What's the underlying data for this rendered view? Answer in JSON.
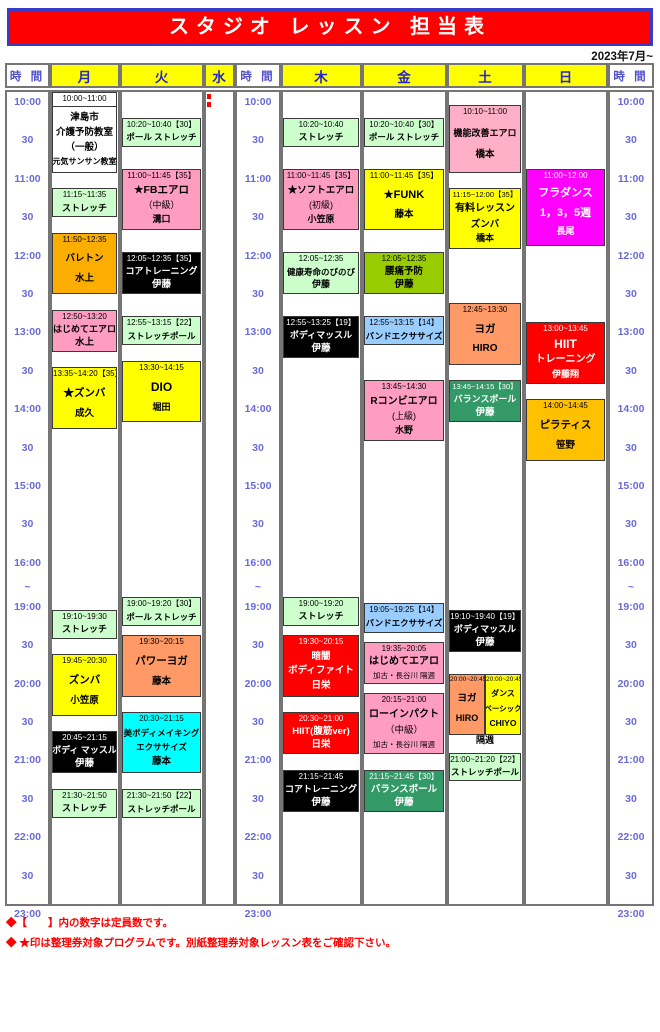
{
  "title": "スタジオ レッスン 担当表",
  "effective": "2023年7月~",
  "columns": [
    {
      "id": "timeL",
      "header": "時 間",
      "kind": "time"
    },
    {
      "id": "mon",
      "header": "月",
      "kind": "day"
    },
    {
      "id": "tue",
      "header": "火",
      "kind": "day"
    },
    {
      "id": "wed",
      "header": "水",
      "kind": "day"
    },
    {
      "id": "timeM",
      "header": "時 間",
      "kind": "time"
    },
    {
      "id": "thu",
      "header": "木",
      "kind": "day"
    },
    {
      "id": "fri",
      "header": "金",
      "kind": "day"
    },
    {
      "id": "sat",
      "header": "土",
      "kind": "day"
    },
    {
      "id": "sun",
      "header": "日",
      "kind": "day"
    },
    {
      "id": "timeR",
      "header": "時 間",
      "kind": "time"
    }
  ],
  "time_labels": [
    {
      "text": "10:00",
      "t": "10:00"
    },
    {
      "text": "30",
      "t": "10:30"
    },
    {
      "text": "11:00",
      "t": "11:00"
    },
    {
      "text": "30",
      "t": "11:30"
    },
    {
      "text": "12:00",
      "t": "12:00"
    },
    {
      "text": "30",
      "t": "12:30"
    },
    {
      "text": "13:00",
      "t": "13:00"
    },
    {
      "text": "30",
      "t": "13:30"
    },
    {
      "text": "14:00",
      "t": "14:00"
    },
    {
      "text": "30",
      "t": "14:30"
    },
    {
      "text": "15:00",
      "t": "15:00"
    },
    {
      "text": "30",
      "t": "15:30"
    },
    {
      "text": "16:00",
      "t": "16:00"
    },
    {
      "text": "~",
      "t": "17:40"
    },
    {
      "text": "19:00",
      "t": "19:00"
    },
    {
      "text": "30",
      "t": "19:30"
    },
    {
      "text": "20:00",
      "t": "20:00"
    },
    {
      "text": "30",
      "t": "20:30"
    },
    {
      "text": "21:00",
      "t": "21:00"
    },
    {
      "text": "30",
      "t": "21:30"
    },
    {
      "text": "22:00",
      "t": "22:00"
    },
    {
      "text": "30",
      "t": "22:30"
    },
    {
      "text": "23:00",
      "t": "23:00"
    }
  ],
  "cells": [
    {
      "col": "mon",
      "time": "10:00~11:00",
      "s": "10:00",
      "e": "11:03",
      "bg": "#FFFFFF",
      "cls": "plain",
      "lines": [
        "津島市",
        "介護予防教室",
        "（一般）",
        {
          "t": "元気サンサン教室",
          "fs": 8
        }
      ]
    },
    {
      "col": "mon",
      "time": "11:15~11:35",
      "s": "11:15",
      "e": "11:38",
      "bg": "#CCFFCC",
      "lines": [
        {
          "t": "ストレッチ",
          "fs": 9
        }
      ]
    },
    {
      "col": "mon",
      "time": "11:50~12:35",
      "s": "11:50",
      "e": "12:38",
      "bg": "#FBAE00",
      "lines": [
        "バレトン",
        "水上"
      ]
    },
    {
      "col": "mon",
      "time": "12:50~13:20",
      "s": "12:50",
      "e": "13:23",
      "bg": "#FF9DC0",
      "lines": [
        {
          "t": "はじめてエアロ",
          "fs": 9
        },
        "水上"
      ]
    },
    {
      "col": "mon",
      "time": "13:35~14:20【35】",
      "s": "13:35",
      "e": "14:23",
      "bg": "#FFFF00",
      "lines": [
        {
          "t": "★ズンバ",
          "fs": 10.5
        },
        "成久"
      ]
    },
    {
      "col": "mon",
      "time": "19:10~19:30",
      "s": "19:10",
      "e": "19:33",
      "bg": "#CCFFCC",
      "lines": [
        {
          "t": "ストレッチ",
          "fs": 9
        }
      ]
    },
    {
      "col": "mon",
      "time": "19:45~20:30",
      "s": "19:45",
      "e": "20:33",
      "bg": "#FFFF00",
      "lines": [
        {
          "t": "ズンバ",
          "fs": 10.5
        },
        "小笠原"
      ]
    },
    {
      "col": "mon",
      "time": "20:45~21:15",
      "s": "20:45",
      "e": "21:18",
      "bg": "#000000",
      "fg": "#FFFFFF",
      "lines": [
        {
          "t": "ボディ マッスル",
          "fs": 9
        },
        "伊藤"
      ]
    },
    {
      "col": "mon",
      "time": "21:30~21:50",
      "s": "21:30",
      "e": "21:53",
      "bg": "#CCFFCC",
      "lines": [
        {
          "t": "ストレッチ",
          "fs": 9
        }
      ]
    },
    {
      "col": "tue",
      "time": "10:20~10:40【30】",
      "s": "10:20",
      "e": "10:43",
      "bg": "#CCFFCC",
      "lines": [
        {
          "t": "ポール ストレッチ",
          "fs": 8.5
        }
      ]
    },
    {
      "col": "tue",
      "time": "11:00~11:45【35】",
      "s": "11:00",
      "e": "11:48",
      "bg": "#FF9DC0",
      "lines": [
        {
          "t": "★FBエアロ",
          "fs": 10.5
        },
        {
          "t": "（中級）",
          "fs": 9,
          "b": 0
        },
        {
          "t": "溝口",
          "fs": 9
        }
      ]
    },
    {
      "col": "tue",
      "time": "12:05~12:35【35】",
      "s": "12:05",
      "e": "12:38",
      "bg": "#000000",
      "fg": "#FFFFFF",
      "lines": [
        {
          "t": "コアトレーニング",
          "fs": 9
        },
        "伊藤"
      ]
    },
    {
      "col": "tue",
      "time": "12:55~13:15【22】",
      "s": "12:55",
      "e": "13:18",
      "bg": "#CCFFCC",
      "lines": [
        {
          "t": "ストレッチポール",
          "fs": 8.5
        }
      ]
    },
    {
      "col": "tue",
      "time": "13:30~14:15",
      "s": "13:30",
      "e": "14:18",
      "bg": "#FFFF00",
      "lines": [
        {
          "t": "DIO",
          "fs": 12
        },
        {
          "t": "堀田",
          "fs": 9
        }
      ]
    },
    {
      "col": "tue",
      "time": "19:00~19:20【30】",
      "s": "19:00",
      "e": "19:23",
      "bg": "#CCFFCC",
      "lines": [
        {
          "t": "ポール ストレッチ",
          "fs": 8.5
        }
      ]
    },
    {
      "col": "tue",
      "time": "19:30~20:15",
      "s": "19:30",
      "e": "20:18",
      "bg": "#FF9966",
      "lines": [
        {
          "t": "パワーヨガ",
          "fs": 10.5
        },
        "藤本"
      ]
    },
    {
      "col": "tue",
      "time": "20:30~21:15",
      "s": "20:30",
      "e": "21:18",
      "bg": "#00FFFF",
      "lines": [
        {
          "t": "美ボディメイキング",
          "fs": 8.5
        },
        {
          "t": "エクササイズ",
          "fs": 8.5
        },
        "藤本"
      ]
    },
    {
      "col": "tue",
      "time": "21:30~21:50【22】",
      "s": "21:30",
      "e": "21:53",
      "bg": "#CCFFCC",
      "lines": [
        {
          "t": "ストレッチポール",
          "fs": 8.5
        }
      ]
    },
    {
      "col": "thu",
      "time": "10:20~10:40",
      "s": "10:20",
      "e": "10:43",
      "bg": "#CCFFCC",
      "lines": [
        {
          "t": "ストレッチ",
          "fs": 9
        }
      ]
    },
    {
      "col": "thu",
      "time": "11:00~11:45【35】",
      "s": "11:00",
      "e": "11:48",
      "bg": "#FF9DC0",
      "lines": [
        {
          "t": "★ソフトエアロ",
          "fs": 9.5
        },
        {
          "t": "(初級)",
          "fs": 9,
          "b": 0
        },
        {
          "t": "小笠原",
          "fs": 9
        }
      ]
    },
    {
      "col": "thu",
      "time": "12:05~12:35",
      "s": "12:05",
      "e": "12:38",
      "bg": "#CCFFCC",
      "lines": [
        {
          "t": "健康寿命のびのび",
          "fs": 8.5
        },
        {
          "t": "伊藤",
          "fs": 9
        }
      ]
    },
    {
      "col": "thu",
      "time": "12:55~13:25【19】",
      "s": "12:55",
      "e": "13:28",
      "bg": "#000000",
      "fg": "#FFFFFF",
      "lines": [
        {
          "t": "ボディマッスル",
          "fs": 9
        },
        "伊藤"
      ]
    },
    {
      "col": "thu",
      "time": "19:00~19:20",
      "s": "19:00",
      "e": "19:23",
      "bg": "#CCFFCC",
      "lines": [
        {
          "t": "ストレッチ",
          "fs": 9
        }
      ]
    },
    {
      "col": "thu",
      "time": "19:30~20:15",
      "s": "19:30",
      "e": "20:18",
      "bg": "#FF0000",
      "fg": "#FFFFFF",
      "lines": [
        "暗闇",
        "ボディファイト",
        "日栄"
      ]
    },
    {
      "col": "thu",
      "time": "20:30~21:00",
      "s": "20:30",
      "e": "21:03",
      "bg": "#FF0000",
      "fg": "#FFFFFF",
      "lines": [
        {
          "t": "HIIT(腹筋ver)",
          "fs": 9.5
        },
        "日栄"
      ]
    },
    {
      "col": "thu",
      "time": "21:15~21:45",
      "s": "21:15",
      "e": "21:48",
      "bg": "#000000",
      "fg": "#FFFFFF",
      "lines": [
        {
          "t": "コアトレーニング",
          "fs": 9
        },
        "伊藤"
      ]
    },
    {
      "col": "fri",
      "time": "10:20~10:40【30】",
      "s": "10:20",
      "e": "10:43",
      "bg": "#CCFFCC",
      "lines": [
        {
          "t": "ポール ストレッチ",
          "fs": 8.5
        }
      ]
    },
    {
      "col": "fri",
      "time": "11:00~11:45【35】",
      "s": "11:00",
      "e": "11:48",
      "bg": "#FFFF00",
      "lines": [
        {
          "t": "★FUNK",
          "fs": 11
        },
        "藤本"
      ]
    },
    {
      "col": "fri",
      "time": "12:05~12:35",
      "s": "12:05",
      "e": "12:38",
      "bg": "#99CC00",
      "lines": [
        "腰痛予防",
        "伊藤"
      ]
    },
    {
      "col": "fri",
      "time": "12:55~13:15【14】",
      "s": "12:55",
      "e": "13:18",
      "bg": "#99CCFF",
      "lines": [
        {
          "t": "バンドエクササイズ",
          "fs": 8.5
        }
      ]
    },
    {
      "col": "fri",
      "time": "13:45~14:30",
      "s": "13:45",
      "e": "14:33",
      "bg": "#FF9DC0",
      "lines": [
        {
          "t": "Rコンビエアロ",
          "fs": 10
        },
        {
          "t": "(上級)",
          "fs": 9,
          "b": 0
        },
        {
          "t": "水野",
          "fs": 9
        }
      ]
    },
    {
      "col": "fri",
      "time": "19:05~19:25【14】",
      "s": "19:05",
      "e": "19:28",
      "bg": "#99CCFF",
      "lines": [
        {
          "t": "バンドエクササイズ",
          "fs": 8.5
        }
      ]
    },
    {
      "col": "fri",
      "time": "19:35~20:05",
      "s": "19:35",
      "e": "20:08",
      "bg": "#FF9DC0",
      "lines": [
        {
          "t": "はじめてエアロ",
          "fs": 10
        },
        {
          "t": "加古・長谷川 隔週",
          "fs": 7.5,
          "b": 0
        }
      ]
    },
    {
      "col": "fri",
      "time": "20:15~21:00",
      "s": "20:15",
      "e": "21:03",
      "bg": "#FF9DC0",
      "lines": [
        {
          "t": "ローインパクト",
          "fs": 10
        },
        {
          "t": "（中級）",
          "fs": 9.5,
          "b": 0
        },
        {
          "t": "加古・長谷川 隔週",
          "fs": 7.5,
          "b": 0
        }
      ]
    },
    {
      "col": "fri",
      "time": "21:15~21:45【30】",
      "s": "21:15",
      "e": "21:48",
      "bg": "#339966",
      "fg": "#FFFFFF",
      "lines": [
        {
          "t": "バランスボール",
          "fs": 9.5
        },
        "伊藤"
      ]
    },
    {
      "col": "sat",
      "time": "10:10~11:00",
      "s": "10:10",
      "e": "11:03",
      "bg": "#FFB0C8",
      "lines": [
        {
          "t": "機能改善エアロ",
          "fs": 9
        },
        "橋本"
      ]
    },
    {
      "col": "sat",
      "time": "11:15~12:00【35】",
      "s": "11:15",
      "e": "12:03",
      "bg": "#FFFF00",
      "tfs": 7.5,
      "lines": [
        {
          "t": "有料レッスン",
          "fs": 10
        },
        {
          "t": "ズンバ",
          "fs": 9.5
        },
        {
          "t": "橋本",
          "fs": 9
        }
      ]
    },
    {
      "col": "sat",
      "time": "12:45~13:30",
      "s": "12:45",
      "e": "13:33",
      "bg": "#FF9966",
      "lines": [
        {
          "t": "ヨガ",
          "fs": 10.5
        },
        {
          "t": "HIRO",
          "fs": 10
        }
      ]
    },
    {
      "col": "sat",
      "time": "13:45~14:15【30】",
      "s": "13:45",
      "e": "14:18",
      "bg": "#339966",
      "fg": "#FFFFFF",
      "tfs": 7.5,
      "lines": [
        {
          "t": "バランスボール",
          "fs": 9
        },
        "伊藤"
      ]
    },
    {
      "col": "sat",
      "time": "19:10~19:40【19】",
      "s": "19:10",
      "e": "19:43",
      "bg": "#000000",
      "fg": "#FFFFFF",
      "lines": [
        {
          "t": "ボディマッスル",
          "fs": 9
        },
        "伊藤"
      ]
    },
    {
      "col": "satL",
      "time": "20:00~20:45",
      "s": "20:00",
      "e": "20:48",
      "bg": "#FF9966",
      "tfs": 6.5,
      "lines": [
        {
          "t": "ヨガ",
          "fs": 9.5
        },
        {
          "t": "HIRO",
          "fs": 9
        }
      ]
    },
    {
      "col": "satR",
      "time": "20:00~20:45",
      "s": "20:00",
      "e": "20:48",
      "bg": "#FFFF00",
      "tfs": 6.5,
      "lines": [
        {
          "t": "ダンス",
          "fs": 8
        },
        {
          "t": "ベーシック",
          "fs": 7.5
        },
        {
          "t": "CHIYO",
          "fs": 8.5
        }
      ]
    },
    {
      "col": "sat",
      "s": "20:48",
      "e": "21:00",
      "cls": "note",
      "lines": [
        {
          "t": "隔週",
          "fs": 9
        }
      ]
    },
    {
      "col": "sat",
      "time": "21:00~21:20【22】",
      "s": "21:02",
      "e": "21:24",
      "bg": "#CCFFCC",
      "lines": [
        {
          "t": "ストレッチポール",
          "fs": 8.5
        }
      ]
    },
    {
      "col": "sun",
      "time": "11:00~12:00",
      "s": "11:00",
      "e": "12:00",
      "bg": "#FF00FF",
      "fg": "#FFFFFF",
      "lines": [
        {
          "t": "フラダンス",
          "fs": 11
        },
        {
          "t": "1，3，5週",
          "fs": 11
        },
        {
          "t": "長尾",
          "fs": 9
        }
      ]
    },
    {
      "col": "sun",
      "time": "13:00~13:45",
      "s": "13:00",
      "e": "13:48",
      "bg": "#FF0000",
      "fg": "#FFFFFF",
      "lines": [
        {
          "t": "HIIT",
          "fs": 12
        },
        {
          "t": "トレーニング",
          "fs": 10
        },
        {
          "t": "伊藤翔",
          "fs": 9
        }
      ]
    },
    {
      "col": "sun",
      "time": "14:00~14:45",
      "s": "14:00",
      "e": "14:48",
      "bg": "#FFC000",
      "lines": [
        {
          "t": "ピラティス",
          "fs": 10.5
        },
        {
          "t": "笹野",
          "fs": 9.5
        }
      ]
    }
  ],
  "notes": [
    "◆【　　】内の数字は定員数です。",
    "◆ ★印は整理券対象プログラムです。別紙整理券対象レッスン表をご確認下さい。"
  ],
  "colors": {
    "title_bg": "#FE0000",
    "title_border": "#3A3AC8",
    "header_day_bg": "#FFFF00",
    "header_text": "#2626CE",
    "time_label": "#6A6AD8",
    "note_text": "#FF0000",
    "grid_border": "#757575"
  }
}
